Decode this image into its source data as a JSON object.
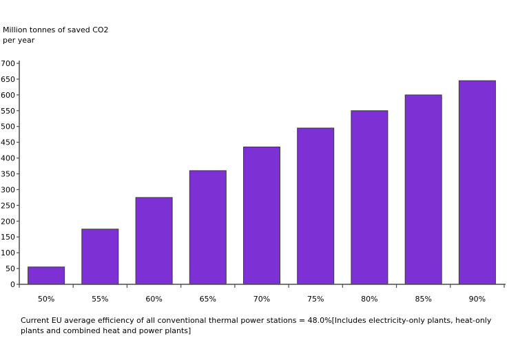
{
  "chart_data": {
    "type": "bar",
    "title": "",
    "ylabel": "Million tonnes of saved CO2 per year",
    "ylabel_lines": [
      "Million tonnes of saved CO2",
      "per year"
    ],
    "xlabel": "",
    "categories": [
      "50%",
      "55%",
      "60%",
      "65%",
      "70%",
      "75%",
      "80%",
      "85%",
      "90%"
    ],
    "values": [
      55,
      175,
      275,
      360,
      435,
      495,
      550,
      600,
      645
    ],
    "ylim": [
      0,
      700
    ],
    "ytick_step": 50,
    "grid": false,
    "legend": "none",
    "colors": {
      "bar_fill": "#7d31d4",
      "bar_border": "#3a3a3a",
      "axis": "#4a4a4a",
      "tick_text": "#000000"
    }
  },
  "footnote": {
    "text": "Current EU average efficiency of all conventional thermal power stations = 48.0%[Includes electricity-only plants, heat-only plants and combined heat and power plants]"
  }
}
